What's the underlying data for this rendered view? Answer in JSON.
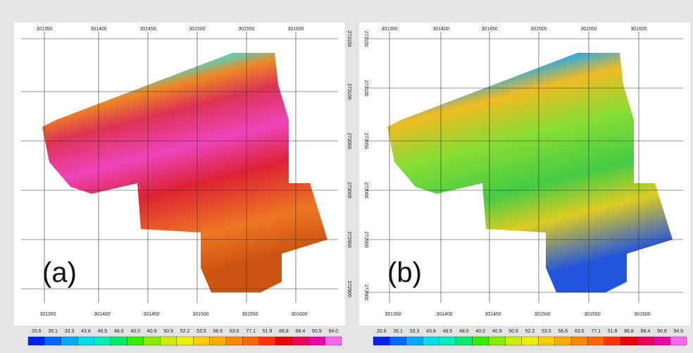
{
  "panels": [
    {
      "label": "(a)",
      "top_labels": [
        "301350",
        "301400",
        "301450",
        "301500",
        "301550",
        "301600"
      ],
      "bottom_labels": [
        "301350",
        "301400",
        "301450",
        "301500",
        "301550",
        "301600"
      ],
      "side_labels": [
        "273150",
        "273100",
        "273050",
        "273000",
        "272950",
        "272900"
      ],
      "colorbar_labels": [
        "20.6",
        "35.1",
        "33.3",
        "43.8",
        "46.5",
        "48.0",
        "40.0",
        "40.9",
        "50.9",
        "52.2",
        "53.5",
        "56.6",
        "63.6",
        "77.1",
        "51.8",
        "86.8",
        "88.4",
        "90.9",
        "94.0"
      ]
    },
    {
      "label": "(b)",
      "top_labels": [
        "301350",
        "301400",
        "301450",
        "301500",
        "301550",
        "301600"
      ],
      "bottom_labels": [
        "301350",
        "301400",
        "301450",
        "301500",
        "301550",
        "301600"
      ],
      "side_labels": [
        "273150",
        "273100",
        "273050",
        "273000",
        "272950",
        "272900"
      ],
      "colorbar_labels": [
        "20.6",
        "35.1",
        "33.3",
        "43.8",
        "46.5",
        "48.0",
        "40.0",
        "40.9",
        "50.9",
        "52.2",
        "53.5",
        "56.6",
        "63.6",
        "77.1",
        "51.8",
        "86.8",
        "88.4",
        "90.9",
        "94.0"
      ]
    }
  ]
}
